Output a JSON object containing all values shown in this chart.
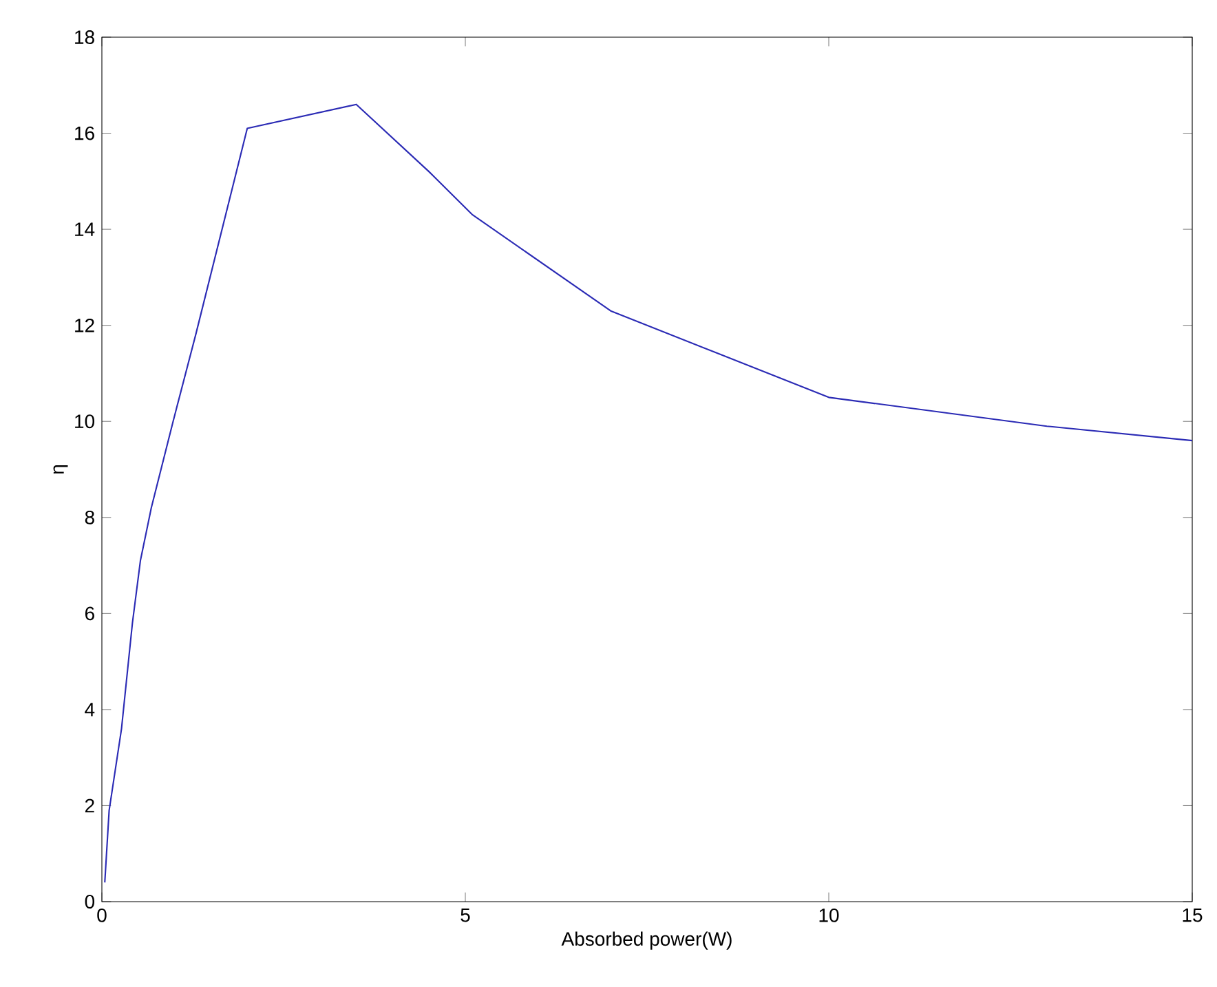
{
  "chart_data": {
    "type": "line",
    "xlabel": "Absorbed power(W)",
    "ylabel": "η",
    "x": [
      0.04,
      0.1,
      0.27,
      0.42,
      0.53,
      0.68,
      0.98,
      1.29,
      2.0,
      3.5,
      4.5,
      5.1,
      7.0,
      10.0,
      13.0,
      15.0
    ],
    "series": [
      {
        "color": "#2b2bb5",
        "values": [
          0.4,
          1.9,
          3.6,
          5.8,
          7.1,
          8.2,
          10.0,
          11.8,
          16.1,
          16.6,
          15.2,
          14.3,
          12.3,
          10.5,
          9.9,
          9.6
        ]
      }
    ],
    "xlim": [
      0,
      15
    ],
    "ylim": [
      0,
      18
    ],
    "xticks": [
      0,
      5,
      10,
      15
    ],
    "yticks": [
      0,
      2,
      4,
      6,
      8,
      10,
      12,
      14,
      16,
      18
    ],
    "grid": false,
    "legend": false,
    "marker": "none",
    "line_style": "solid"
  }
}
